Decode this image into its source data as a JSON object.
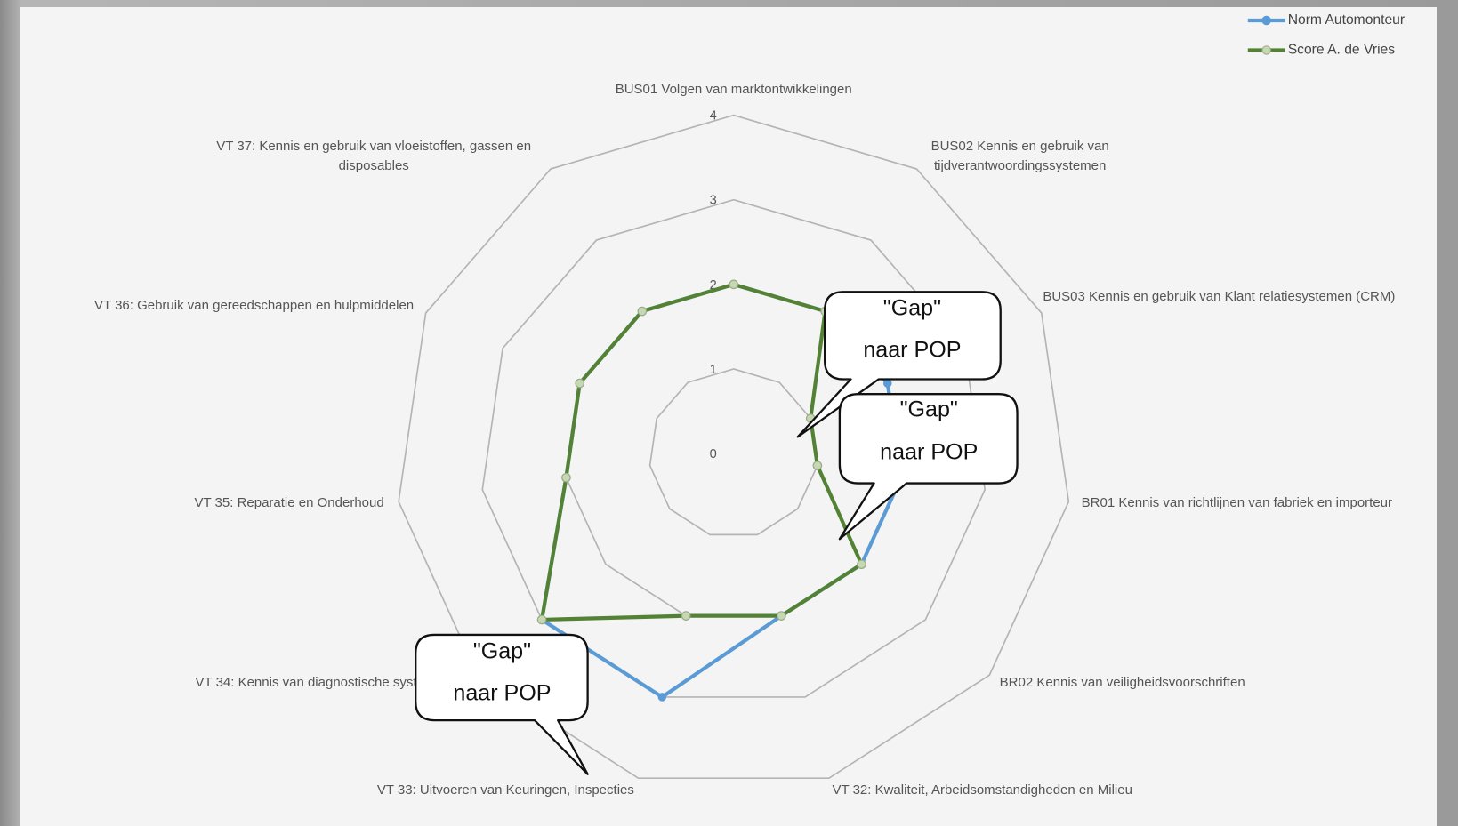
{
  "chart_data": {
    "type": "radar",
    "categories": [
      "BUS01 Volgen van marktontwikkelingen",
      "BUS02 Kennis en gebruik van tijdverantwoordingssystemen",
      "BUS03 Kennis en gebruik van Klant relatiesystemen (CRM)",
      "BR01 Kennis van richtlijnen van fabriek en importeur",
      "BR02 Kennis van veiligheidsvoorschriften",
      "VT 32: Kwaliteit, Arbeidsomstandigheden en Milieu",
      "VT 33: Uitvoeren van Keuringen, Inspecties",
      "VT 34: Kennis van diagnostische systemen",
      "VT 35: Reparatie en Onderhoud",
      "VT 36: Gebruik van gereedschappen en hulpmiddelen",
      "VT 37: Kennis en gebruik van vloeistoffen, gassen en disposables"
    ],
    "series": [
      {
        "name": "Norm Automonteur",
        "color": "#5b9bd5",
        "values": [
          2,
          2,
          2,
          2,
          2,
          2,
          3,
          3,
          2,
          2,
          2
        ]
      },
      {
        "name": "Score A. de Vries",
        "color": "#548235",
        "values": [
          2,
          2,
          1,
          1,
          2,
          2,
          2,
          3,
          2,
          2,
          2
        ]
      }
    ],
    "ylim": [
      0,
      4
    ],
    "yticks": [
      0,
      1,
      2,
      3,
      4
    ],
    "grid": true,
    "legend": "top-right",
    "annotations": [
      {
        "text": [
          "\"Gap\"",
          "naar POP"
        ]
      },
      {
        "text": [
          "\"Gap\"",
          "naar POP"
        ]
      },
      {
        "text": [
          "\"Gap\"",
          "naar POP"
        ]
      }
    ]
  }
}
